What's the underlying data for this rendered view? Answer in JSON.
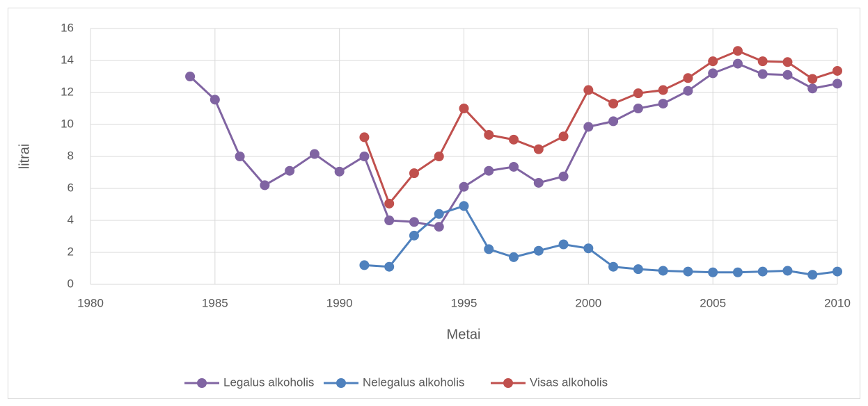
{
  "chart_data": {
    "type": "line",
    "x_label": "Metai",
    "y_label": "litrai",
    "x": [
      1984,
      1985,
      1986,
      1987,
      1988,
      1989,
      1990,
      1991,
      1992,
      1993,
      1994,
      1995,
      1996,
      1997,
      1998,
      1999,
      2000,
      2001,
      2002,
      2003,
      2004,
      2005,
      2006,
      2007,
      2008,
      2009,
      2010
    ],
    "series": [
      {
        "name": "Legalus alkoholis",
        "color": "#8064a2",
        "values": [
          13.0,
          11.55,
          8.0,
          6.2,
          7.1,
          8.15,
          7.05,
          8.0,
          4.0,
          3.9,
          3.6,
          6.1,
          7.1,
          7.35,
          6.35,
          6.75,
          9.85,
          10.2,
          11.0,
          11.3,
          12.1,
          13.2,
          13.8,
          13.15,
          13.1,
          12.25,
          12.55
        ]
      },
      {
        "name": "Nelegalus alkoholis",
        "color": "#4f81bd",
        "values": [
          null,
          null,
          null,
          null,
          null,
          null,
          null,
          1.2,
          1.1,
          3.05,
          4.4,
          4.9,
          2.2,
          1.7,
          2.1,
          2.5,
          2.25,
          1.1,
          0.95,
          0.85,
          0.8,
          0.75,
          0.75,
          0.8,
          0.85,
          0.6,
          0.8
        ]
      },
      {
        "name": "Visas alkoholis",
        "color": "#c0504d",
        "values": [
          null,
          null,
          null,
          null,
          null,
          null,
          null,
          9.2,
          5.05,
          6.95,
          8.0,
          11.0,
          9.35,
          9.05,
          8.45,
          9.25,
          12.15,
          11.3,
          11.95,
          12.15,
          12.9,
          13.95,
          14.6,
          13.95,
          13.9,
          12.85,
          13.35
        ]
      }
    ],
    "xlim": [
      1980,
      2010
    ],
    "xticks": [
      1980,
      1985,
      1990,
      1995,
      2000,
      2005,
      2010
    ],
    "ylim": [
      0,
      16
    ],
    "yticks": [
      0,
      2,
      4,
      6,
      8,
      10,
      12,
      14,
      16
    ],
    "grid": true,
    "legend": "bottom"
  }
}
